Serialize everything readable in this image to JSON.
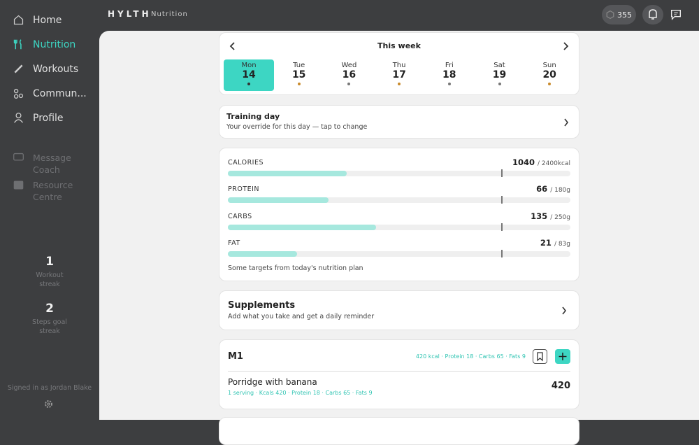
{
  "sidebar": {
    "nav": [
      "Home",
      "Nutrition",
      "Workouts",
      "Commun...",
      "Profile"
    ],
    "active": 1,
    "secondary": [
      "Message Coach",
      "Resource Centre"
    ],
    "stats": [
      {
        "value": 1,
        "label": "Workout streak"
      },
      {
        "value": 2,
        "label": "Steps goal streak"
      }
    ],
    "signed_in": "Signed in as Jordan Blake"
  },
  "header": {
    "brand": "HYLTH",
    "section": "Nutrition",
    "points": 355
  },
  "week": {
    "title": "This week",
    "selected": 0,
    "days": [
      {
        "name": "Mon",
        "date": 14,
        "dot": "#333333"
      },
      {
        "name": "Tue",
        "date": 15,
        "dot": "#c98a2b"
      },
      {
        "name": "Wed",
        "date": 16,
        "dot": "#777777"
      },
      {
        "name": "Thu",
        "date": 17,
        "dot": "#c98a2b"
      },
      {
        "name": "Fri",
        "date": 18,
        "dot": "#777777"
      },
      {
        "name": "Sat",
        "date": 19,
        "dot": "#777777"
      },
      {
        "name": "Sun",
        "date": 20,
        "dot": "#c98a2b"
      }
    ]
  },
  "training": {
    "title": "Training day",
    "subtitle": "Your override for this day — tap to change"
  },
  "macros": {
    "items": [
      {
        "name": "CALORIES",
        "value": 1040,
        "target": {
          "value": 2400,
          "label": "/ 2400kcal"
        }
      },
      {
        "name": "PROTEIN",
        "value": 66,
        "target": {
          "value": 180,
          "label": "/ 180g"
        }
      },
      {
        "name": "CARBS",
        "value": 135,
        "target": {
          "value": 250,
          "label": "/ 250g"
        }
      },
      {
        "name": "FAT",
        "value": 21,
        "target": {
          "value": 83,
          "label": "/ 83g"
        }
      }
    ],
    "note": "Some targets from today's nutrition plan"
  },
  "supplements": {
    "title": "Supplements",
    "subtitle": "Add what you take and get a daily reminder"
  },
  "meal": {
    "title": "M1",
    "summary": "420 kcal · Protein 18 · Carbs 65 · Fats 9",
    "items": [
      {
        "name": "Porridge with banana",
        "detail": "1 serving · Kcals 420 · Protein 18 · Carbs 65 · Fats 9",
        "kcal": 420
      }
    ]
  }
}
